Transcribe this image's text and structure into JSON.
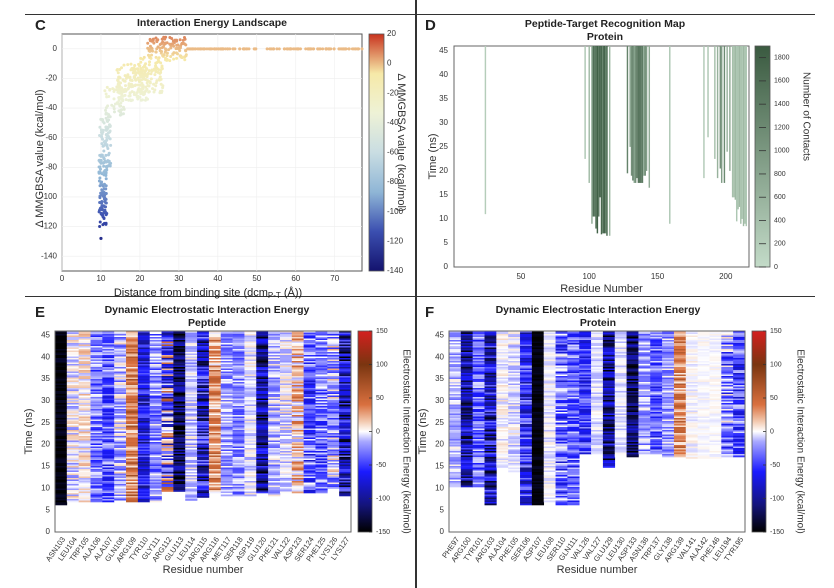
{
  "figure": {
    "panels": [
      "C",
      "D",
      "E",
      "F"
    ]
  },
  "chart_data": [
    {
      "id": "C",
      "type": "scatter",
      "panel_letter": "C",
      "title": "Interaction Energy Landscape",
      "xlabel": "Distance from binding site (dcm",
      "xlabel_sub": "P-T",
      "xlabel_end": " (Å))",
      "ylabel": "Δ MMGBSA value (kcal/mol)",
      "xlim": [
        0,
        77
      ],
      "ylim": [
        -150,
        10
      ],
      "xticks": [
        0,
        10,
        20,
        30,
        40,
        50,
        60,
        70
      ],
      "yticks": [
        0,
        -20,
        -40,
        -60,
        -80,
        -100,
        -120,
        -140
      ],
      "grid": true,
      "colorbar": {
        "label": "Δ MMGBSA value (kcal/mol)",
        "range": [
          -140,
          20
        ],
        "ticks": [
          20,
          0,
          -20,
          -40,
          -60,
          -80,
          -100,
          -120,
          -140
        ],
        "colors": [
          "#14136e",
          "#3b4fb0",
          "#8fb6d6",
          "#c9dde2",
          "#eef2d6",
          "#f6e9a8",
          "#c8321e"
        ]
      },
      "clusters": [
        {
          "x_range": [
            9.5,
            11.5
          ],
          "y_range": [
            -120,
            -80
          ],
          "n": 90
        },
        {
          "x_range": [
            9.5,
            12.5
          ],
          "y_range": [
            -80,
            -45
          ],
          "n": 90
        },
        {
          "x_range": [
            11,
            16
          ],
          "y_range": [
            -45,
            -25
          ],
          "n": 50
        },
        {
          "x_range": [
            14,
            22
          ],
          "y_range": [
            -35,
            -10
          ],
          "n": 160
        },
        {
          "x_range": [
            20,
            26
          ],
          "y_range": [
            -30,
            -5
          ],
          "n": 90
        },
        {
          "x_range": [
            22,
            32
          ],
          "y_range": [
            -8,
            8
          ],
          "n": 120
        },
        {
          "x_range": [
            32,
            77
          ],
          "y_range": [
            0,
            0
          ],
          "n": 140
        }
      ],
      "outliers": [
        {
          "x": 10,
          "y": -128
        }
      ]
    },
    {
      "id": "D",
      "type": "bar",
      "panel_letter": "D",
      "title": "Peptide-Target Recognition  Map",
      "subtitle": "Protein",
      "xlabel": "Residue Number",
      "ylabel": "Time (ns)",
      "xlim": [
        1,
        217
      ],
      "ylim": [
        0,
        46
      ],
      "xticks": [
        50,
        100,
        150,
        200
      ],
      "yticks": [
        0,
        5,
        10,
        15,
        20,
        25,
        30,
        35,
        40,
        45
      ],
      "colorbar": {
        "label": "Number of Contacts",
        "range": [
          0,
          1900
        ],
        "ticks": [
          0,
          200,
          400,
          600,
          800,
          1000,
          1200,
          1400,
          1600,
          1800
        ],
        "colors": [
          "#c3dbc8",
          "#3a5a40"
        ]
      },
      "bars": [
        {
          "residue": 24,
          "start_time": 11,
          "contacts": 200
        },
        {
          "residue": 97,
          "start_time": 22.5,
          "contacts": 300
        },
        {
          "residue": 100,
          "start_time": 17.5,
          "contacts": 500
        },
        {
          "residue": 102,
          "start_time": 9,
          "contacts": 700
        },
        {
          "residue": 103,
          "start_time": 10.5,
          "contacts": 1600
        },
        {
          "residue": 104,
          "start_time": 10.5,
          "contacts": 1400
        },
        {
          "residue": 105,
          "start_time": 8,
          "contacts": 1700
        },
        {
          "residue": 106,
          "start_time": 7,
          "contacts": 1800
        },
        {
          "residue": 107,
          "start_time": 10.5,
          "contacts": 1500
        },
        {
          "residue": 108,
          "start_time": 14.5,
          "contacts": 1800
        },
        {
          "residue": 109,
          "start_time": 6.8,
          "contacts": 1700
        },
        {
          "residue": 110,
          "start_time": 7,
          "contacts": 1400
        },
        {
          "residue": 111,
          "start_time": 7,
          "contacts": 1900
        },
        {
          "residue": 112,
          "start_time": 7,
          "contacts": 1300
        },
        {
          "residue": 113,
          "start_time": 6.5,
          "contacts": 1700
        },
        {
          "residue": 115,
          "start_time": 6.5,
          "contacts": 500
        },
        {
          "residue": 128,
          "start_time": 19.5,
          "contacts": 1300
        },
        {
          "residue": 130,
          "start_time": 25,
          "contacts": 800
        },
        {
          "residue": 131,
          "start_time": 19,
          "contacts": 1100
        },
        {
          "residue": 132,
          "start_time": 18,
          "contacts": 1400
        },
        {
          "residue": 133,
          "start_time": 17.5,
          "contacts": 800
        },
        {
          "residue": 134,
          "start_time": 17.5,
          "contacts": 1100
        },
        {
          "residue": 135,
          "start_time": 18.5,
          "contacts": 1500
        },
        {
          "residue": 136,
          "start_time": 17.5,
          "contacts": 1500
        },
        {
          "residue": 137,
          "start_time": 17.5,
          "contacts": 1500
        },
        {
          "residue": 138,
          "start_time": 17.5,
          "contacts": 1500
        },
        {
          "residue": 139,
          "start_time": 17.5,
          "contacts": 1400
        },
        {
          "residue": 140,
          "start_time": 19,
          "contacts": 700
        },
        {
          "residue": 141,
          "start_time": 19,
          "contacts": 1200
        },
        {
          "residue": 142,
          "start_time": 20,
          "contacts": 900
        },
        {
          "residue": 144,
          "start_time": 16.5,
          "contacts": 700
        },
        {
          "residue": 159,
          "start_time": 9,
          "contacts": 300
        },
        {
          "residue": 184,
          "start_time": 18.5,
          "contacts": 250
        },
        {
          "residue": 187,
          "start_time": 27,
          "contacts": 300
        },
        {
          "residue": 192,
          "start_time": 22.5,
          "contacts": 400
        },
        {
          "residue": 194,
          "start_time": 18.5,
          "contacts": 600
        },
        {
          "residue": 196,
          "start_time": 20.5,
          "contacts": 1100
        },
        {
          "residue": 197,
          "start_time": 17.5,
          "contacts": 900
        },
        {
          "residue": 199,
          "start_time": 17.5,
          "contacts": 1200
        },
        {
          "residue": 201,
          "start_time": 24,
          "contacts": 600
        },
        {
          "residue": 203,
          "start_time": 20,
          "contacts": 700
        },
        {
          "residue": 205,
          "start_time": 14.5,
          "contacts": 400
        },
        {
          "residue": 206,
          "start_time": 14.5,
          "contacts": 400
        },
        {
          "residue": 207,
          "start_time": 14,
          "contacts": 500
        },
        {
          "residue": 208,
          "start_time": 9.5,
          "contacts": 300
        },
        {
          "residue": 209,
          "start_time": 12,
          "contacts": 400
        },
        {
          "residue": 210,
          "start_time": 12.5,
          "contacts": 500
        },
        {
          "residue": 211,
          "start_time": 9,
          "contacts": 400
        },
        {
          "residue": 212,
          "start_time": 10,
          "contacts": 300
        },
        {
          "residue": 213,
          "start_time": 8.5,
          "contacts": 500
        },
        {
          "residue": 214,
          "start_time": 9,
          "contacts": 400
        },
        {
          "residue": 215,
          "start_time": 8.5,
          "contacts": 300
        }
      ]
    },
    {
      "id": "E",
      "type": "heatmap",
      "panel_letter": "E",
      "title": "Dynamic Electrostatic Interaction Energy",
      "subtitle": "Peptide",
      "xlabel": "Residue number",
      "ylabel": "Time (ns)",
      "ylim": [
        0,
        46
      ],
      "yticks": [
        0,
        5,
        10,
        15,
        20,
        25,
        30,
        35,
        40,
        45
      ],
      "categories": [
        "ASN103",
        "LEU104",
        "TRP105",
        "ALA106",
        "ALA107",
        "GLN108",
        "ARG109",
        "TYR110",
        "GLY111",
        "ARG112",
        "GLU113",
        "LEU114",
        "ARG115",
        "ARG116",
        "MET117",
        "SER118",
        "ASP119",
        "GLU120",
        "PHE121",
        "VAL122",
        "ASP123",
        "SER124",
        "PHE125",
        "LYS126",
        "LYS127"
      ],
      "colorbar": {
        "label": "Electrostatic Interaction Energy (kcal/mol)",
        "range": [
          -150,
          150
        ],
        "ticks": [
          150,
          100,
          50,
          0,
          -50,
          -100,
          -150
        ]
      },
      "columns": [
        {
          "start": 6.5,
          "mean": -145,
          "var": 10
        },
        {
          "start": 7,
          "mean": -5,
          "var": 25
        },
        {
          "start": 7,
          "mean": 5,
          "var": 20
        },
        {
          "start": 7,
          "mean": -30,
          "var": 30
        },
        {
          "start": 7,
          "mean": -40,
          "var": 35
        },
        {
          "start": 7,
          "mean": -15,
          "var": 30
        },
        {
          "start": 7,
          "mean": 40,
          "var": 35
        },
        {
          "start": 7,
          "mean": -75,
          "var": 40
        },
        {
          "start": 7,
          "mean": -25,
          "var": 30
        },
        {
          "start": 9.5,
          "mean": -20,
          "var": 90
        },
        {
          "start": 9.5,
          "mean": -120,
          "var": 40
        },
        {
          "start": 7.5,
          "mean": -10,
          "var": 20
        },
        {
          "start": 8,
          "mean": -80,
          "var": 60
        },
        {
          "start": 9,
          "mean": 30,
          "var": 35
        },
        {
          "start": 8.5,
          "mean": -20,
          "var": 25
        },
        {
          "start": 8.5,
          "mean": -25,
          "var": 25
        },
        {
          "start": 8.5,
          "mean": -5,
          "var": 15
        },
        {
          "start": 9,
          "mean": -100,
          "var": 50
        },
        {
          "start": 8.5,
          "mean": -15,
          "var": 25
        },
        {
          "start": 9,
          "mean": -5,
          "var": 20
        },
        {
          "start": 9,
          "mean": 15,
          "var": 35
        },
        {
          "start": 9,
          "mean": -40,
          "var": 40
        },
        {
          "start": 9,
          "mean": -35,
          "var": 35
        },
        {
          "start": 10,
          "mean": -15,
          "var": 40
        },
        {
          "start": 8.5,
          "mean": -90,
          "var": 60
        }
      ]
    },
    {
      "id": "F",
      "type": "heatmap",
      "panel_letter": "F",
      "title": "Dynamic Electrostatic Interaction Energy",
      "subtitle": "Protein",
      "xlabel": "Residue number",
      "ylabel": "Time (ns)",
      "ylim": [
        0,
        46
      ],
      "yticks": [
        0,
        5,
        10,
        15,
        20,
        25,
        30,
        35,
        40,
        45
      ],
      "categories": [
        "PHE97",
        "ARG100",
        "TYR101",
        "ARG103",
        "ALA104",
        "PHE105",
        "SER106",
        "ASP107",
        "LEU108",
        "SER110",
        "GLN111",
        "VAL126",
        "VAL127",
        "GLU129",
        "LEU130",
        "ASP133",
        "ASN136",
        "TRP137",
        "GLY138",
        "ARG139",
        "VAL141",
        "ALA142",
        "PHE146",
        "LEU194",
        "TYR195"
      ],
      "colorbar": {
        "label": "Electrostatic Interaction Energy (kcal/mol)",
        "range": [
          -150,
          150
        ],
        "ticks": [
          150,
          100,
          50,
          0,
          -50,
          -100,
          -150
        ]
      },
      "columns": [
        {
          "start": 10.5,
          "mean": -15,
          "var": 20
        },
        {
          "start": 10.5,
          "mean": -95,
          "var": 50
        },
        {
          "start": 10.5,
          "mean": -35,
          "var": 30
        },
        {
          "start": 6.5,
          "mean": -85,
          "var": 55
        },
        {
          "start": 15,
          "mean": 0,
          "var": 12
        },
        {
          "start": 14,
          "mean": -5,
          "var": 15
        },
        {
          "start": 6.5,
          "mean": -60,
          "var": 45
        },
        {
          "start": 6.5,
          "mean": -145,
          "var": 8
        },
        {
          "start": 7,
          "mean": -3,
          "var": 10
        },
        {
          "start": 6.5,
          "mean": -40,
          "var": 45
        },
        {
          "start": 6.5,
          "mean": -40,
          "var": 35
        },
        {
          "start": 18,
          "mean": -50,
          "var": 35
        },
        {
          "start": 18,
          "mean": -5,
          "var": 10
        },
        {
          "start": 15,
          "mean": -100,
          "var": 50
        },
        {
          "start": 17.5,
          "mean": -5,
          "var": 10
        },
        {
          "start": 17.5,
          "mean": -115,
          "var": 40
        },
        {
          "start": 18,
          "mean": -20,
          "var": 25
        },
        {
          "start": 18,
          "mean": -40,
          "var": 35
        },
        {
          "start": 17.5,
          "mean": -20,
          "var": 25
        },
        {
          "start": 17.5,
          "mean": 35,
          "var": 30
        },
        {
          "start": 17,
          "mean": 0,
          "var": 8
        },
        {
          "start": 17,
          "mean": 0,
          "var": 5
        },
        {
          "start": 17,
          "mean": 0,
          "var": 5
        },
        {
          "start": 17.5,
          "mean": -30,
          "var": 45
        },
        {
          "start": 17.5,
          "mean": -45,
          "var": 40
        }
      ]
    }
  ]
}
